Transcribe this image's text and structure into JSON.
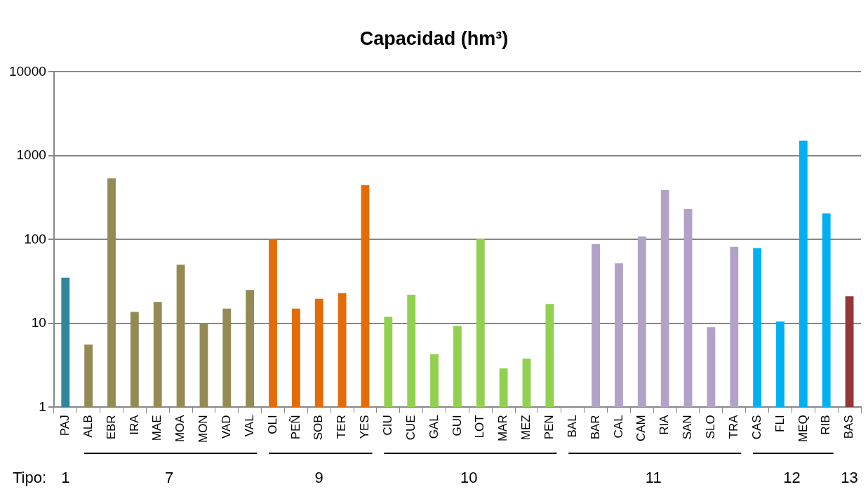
{
  "chart_data": {
    "type": "bar",
    "title": "Capacidad (hm³)",
    "categories": [
      "PAJ",
      "ALB",
      "EBR",
      "IRA",
      "MAE",
      "MOA",
      "MON",
      "VAD",
      "VAL",
      "OLI",
      "PEÑ",
      "SOB",
      "TER",
      "YES",
      "CIU",
      "CUE",
      "GAL",
      "GUI",
      "LOT",
      "MAR",
      "MEZ",
      "PEN",
      "BAL",
      "BAR",
      "CAL",
      "CAM",
      "RIA",
      "SAN",
      "SLO",
      "TRA",
      "CAS",
      "FLI",
      "MEQ",
      "RIB",
      "BAS"
    ],
    "values": [
      35,
      5.6,
      535,
      13.7,
      18,
      50,
      9.8,
      15,
      25,
      101,
      15,
      19.7,
      23,
      445,
      12,
      22,
      4.3,
      9.3,
      102,
      2.9,
      3.8,
      17,
      null,
      88,
      52,
      109,
      390,
      231,
      9,
      82,
      79,
      10.5,
      1510,
      204,
      21
    ],
    "colors": [
      "#31859c",
      "#948a54",
      "#948a54",
      "#948a54",
      "#948a54",
      "#948a54",
      "#948a54",
      "#948a54",
      "#948a54",
      "#e36c09",
      "#e36c09",
      "#e36c09",
      "#e36c09",
      "#e36c09",
      "#92d050",
      "#92d050",
      "#92d050",
      "#92d050",
      "#92d050",
      "#92d050",
      "#92d050",
      "#92d050",
      "#b2a2c7",
      "#b2a2c7",
      "#b2a2c7",
      "#b2a2c7",
      "#b2a2c7",
      "#b2a2c7",
      "#b2a2c7",
      "#b2a2c7",
      "#00b0f0",
      "#00b0f0",
      "#00b0f0",
      "#00b0f0",
      "#953735"
    ],
    "log": true,
    "ylim": [
      1,
      10000
    ],
    "yticks": [
      1,
      10,
      100,
      1000,
      10000
    ],
    "grid": "y",
    "legend": false,
    "annotations": [
      "Tipo:",
      "1",
      "7",
      "9",
      "10",
      "11",
      "12",
      "13"
    ]
  }
}
